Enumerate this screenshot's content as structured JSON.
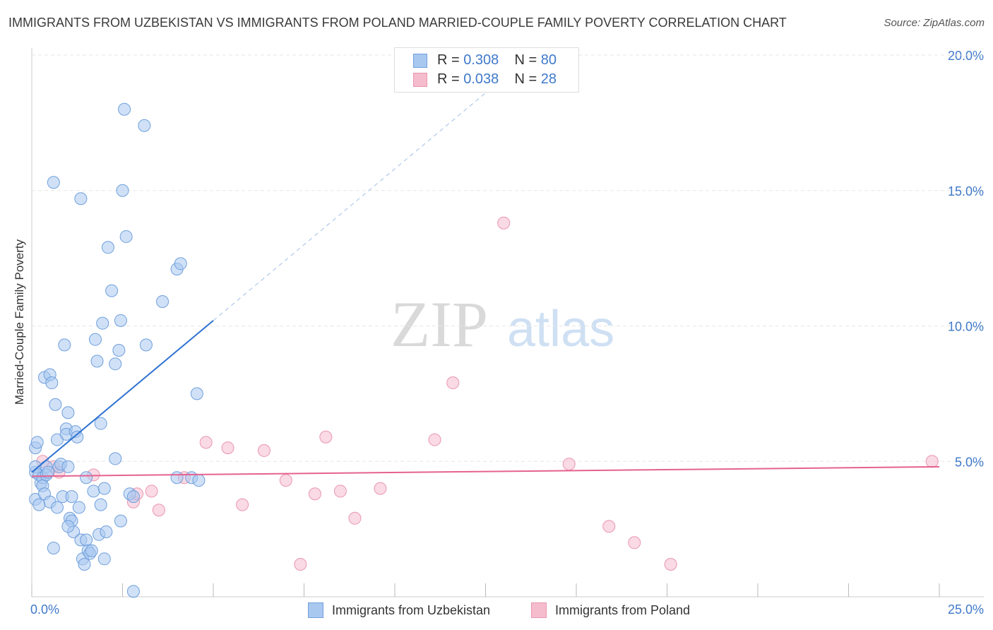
{
  "title": "IMMIGRANTS FROM UZBEKISTAN VS IMMIGRANTS FROM POLAND MARRIED-COUPLE FAMILY POVERTY CORRELATION CHART",
  "source": "Source: ZipAtlas.com",
  "watermark": {
    "zip": "ZIP",
    "atlas": "atlas"
  },
  "legend": {
    "r_label": "R = ",
    "n_label": "N = ",
    "uzbekistan": {
      "r": "0.308",
      "n": "80"
    },
    "poland": {
      "r": "0.038",
      "n": "28"
    }
  },
  "colors": {
    "uzbekistan_fill": "#a9c8f0",
    "uzbekistan_stroke": "#6f9fdc",
    "uzbekistan_line": "#2f72d0",
    "poland_fill": "#f5bccd",
    "poland_stroke": "#e996b0",
    "poland_line": "#e5628f",
    "tick_label": "#3f79c9"
  },
  "chart_data": {
    "type": "scatter",
    "title": "IMMIGRANTS FROM UZBEKISTAN VS IMMIGRANTS FROM POLAND MARRIED-COUPLE FAMILY POVERTY CORRELATION CHART",
    "xlabel": "",
    "ylabel": "Married-Couple Family Poverty",
    "xlim": [
      0,
      25
    ],
    "ylim": [
      0,
      20
    ],
    "x_tick_labels": [
      "0.0%",
      "25.0%"
    ],
    "y_ticks": [
      5,
      10,
      15,
      20
    ],
    "y_tick_labels": [
      "5.0%",
      "10.0%",
      "15.0%",
      "20.0%"
    ],
    "series": [
      {
        "name": "Immigrants from Uzbekistan",
        "r": 0.308,
        "n": 80,
        "trend": {
          "x0": 0,
          "y0": 4.6,
          "x1": 5.0,
          "y1": 10.2,
          "dashed_to_x": 13.0
        },
        "points": [
          [
            0.1,
            4.6
          ],
          [
            0.1,
            4.8
          ],
          [
            0.1,
            5.5
          ],
          [
            0.1,
            3.6
          ],
          [
            0.15,
            5.7
          ],
          [
            0.2,
            4.5
          ],
          [
            0.2,
            3.4
          ],
          [
            0.25,
            4.2
          ],
          [
            0.3,
            4.4
          ],
          [
            0.3,
            4.1
          ],
          [
            0.35,
            3.8
          ],
          [
            0.35,
            8.1
          ],
          [
            0.4,
            4.8
          ],
          [
            0.4,
            4.5
          ],
          [
            0.45,
            4.6
          ],
          [
            0.5,
            8.2
          ],
          [
            0.5,
            3.5
          ],
          [
            0.55,
            7.9
          ],
          [
            0.6,
            15.3
          ],
          [
            0.6,
            1.8
          ],
          [
            0.65,
            7.1
          ],
          [
            0.7,
            3.3
          ],
          [
            0.7,
            5.8
          ],
          [
            0.75,
            4.8
          ],
          [
            0.8,
            4.9
          ],
          [
            0.85,
            3.7
          ],
          [
            0.9,
            9.3
          ],
          [
            0.95,
            6.2
          ],
          [
            0.95,
            6.0
          ],
          [
            1.0,
            6.8
          ],
          [
            1.0,
            4.8
          ],
          [
            1.05,
            2.9
          ],
          [
            1.1,
            2.8
          ],
          [
            1.1,
            3.7
          ],
          [
            1.15,
            2.4
          ],
          [
            1.2,
            6.1
          ],
          [
            1.25,
            5.9
          ],
          [
            1.3,
            3.3
          ],
          [
            1.35,
            2.1
          ],
          [
            1.35,
            14.7
          ],
          [
            1.4,
            1.4
          ],
          [
            1.45,
            1.2
          ],
          [
            1.5,
            4.4
          ],
          [
            1.5,
            2.1
          ],
          [
            1.55,
            1.7
          ],
          [
            1.6,
            1.6
          ],
          [
            1.65,
            1.7
          ],
          [
            1.7,
            3.9
          ],
          [
            1.75,
            9.5
          ],
          [
            1.8,
            8.7
          ],
          [
            1.85,
            2.3
          ],
          [
            1.9,
            3.4
          ],
          [
            1.9,
            6.4
          ],
          [
            1.95,
            10.1
          ],
          [
            2.0,
            1.4
          ],
          [
            2.05,
            2.4
          ],
          [
            2.1,
            12.9
          ],
          [
            2.2,
            11.3
          ],
          [
            2.3,
            5.1
          ],
          [
            2.3,
            8.6
          ],
          [
            2.4,
            9.1
          ],
          [
            2.45,
            10.2
          ],
          [
            2.45,
            2.8
          ],
          [
            2.5,
            15.0
          ],
          [
            2.55,
            18.0
          ],
          [
            2.6,
            13.3
          ],
          [
            2.7,
            3.8
          ],
          [
            2.8,
            3.7
          ],
          [
            2.8,
            0.2
          ],
          [
            3.1,
            17.4
          ],
          [
            3.15,
            9.3
          ],
          [
            3.6,
            10.9
          ],
          [
            4.0,
            12.1
          ],
          [
            4.1,
            12.3
          ],
          [
            4.0,
            4.4
          ],
          [
            4.4,
            4.4
          ],
          [
            4.55,
            7.5
          ],
          [
            4.6,
            4.3
          ],
          [
            2.0,
            4.0
          ],
          [
            1.0,
            2.6
          ]
        ]
      },
      {
        "name": "Immigrants from Poland",
        "r": 0.038,
        "n": 28,
        "trend": {
          "x0": 0,
          "y0": 4.45,
          "x1": 25,
          "y1": 4.8
        },
        "points": [
          [
            0.3,
            5.0
          ],
          [
            0.6,
            4.8
          ],
          [
            0.75,
            4.6
          ],
          [
            1.7,
            4.5
          ],
          [
            2.8,
            3.5
          ],
          [
            2.9,
            3.8
          ],
          [
            3.3,
            3.9
          ],
          [
            3.5,
            3.2
          ],
          [
            4.2,
            4.4
          ],
          [
            4.8,
            5.7
          ],
          [
            5.4,
            5.5
          ],
          [
            5.8,
            3.4
          ],
          [
            6.4,
            5.4
          ],
          [
            7.0,
            4.3
          ],
          [
            7.4,
            1.2
          ],
          [
            7.8,
            3.8
          ],
          [
            8.1,
            5.9
          ],
          [
            8.5,
            3.9
          ],
          [
            8.9,
            2.9
          ],
          [
            9.6,
            4.0
          ],
          [
            11.1,
            5.8
          ],
          [
            11.6,
            7.9
          ],
          [
            13.0,
            13.8
          ],
          [
            14.8,
            4.9
          ],
          [
            15.9,
            2.6
          ],
          [
            16.6,
            2.0
          ],
          [
            17.6,
            1.2
          ],
          [
            24.8,
            5.0
          ]
        ]
      }
    ]
  }
}
